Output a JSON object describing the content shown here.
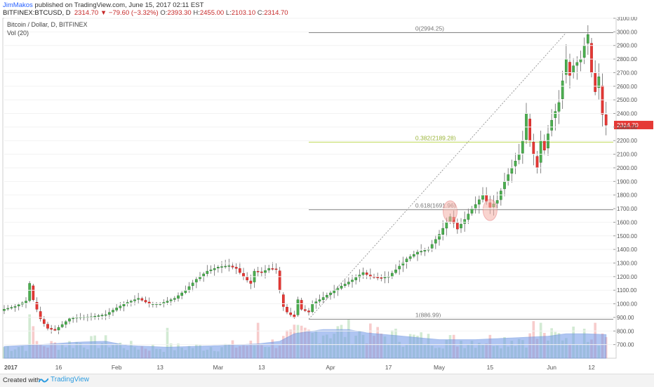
{
  "header": {
    "user": "JimMakos",
    "published_text": "published on TradingView.com, June 15, 2017 02:11 EST",
    "symbol": "BITFINEX:BTCUSD, D",
    "last": "2314.70",
    "change": "▼ −79.60 (−3.32%)",
    "o_label": "O:",
    "o_value": "2393.30",
    "h_label": "H:",
    "h_value": "2455.00",
    "l_label": "L:",
    "l_value": "2103.10",
    "c_label": "C:",
    "c_value": "2314.70"
  },
  "legend": {
    "line1": "Bitcoin / Dollar, D, BITFINEX",
    "line2": "Vol (20)"
  },
  "footer": {
    "created_with": "Created with",
    "brand": "TradingView"
  },
  "colors": {
    "up": "#4caf50",
    "down": "#e53935",
    "volume_ma": "#6f97e8",
    "fib_0618": "#888888",
    "fib_0382": "#c0d958",
    "last_price_tag": "#e53935"
  },
  "chart_data": {
    "type": "candlestick",
    "title": "Bitcoin / Dollar, D, BITFINEX",
    "y_axis": {
      "min": 600,
      "max": 3100,
      "step": 100,
      "ticks": [
        "700.00",
        "800.00",
        "900.00",
        "1000.00",
        "1100.00",
        "1200.00",
        "1300.00",
        "1400.00",
        "1500.00",
        "1600.00",
        "1700.00",
        "1800.00",
        "1900.00",
        "2000.00",
        "2100.00",
        "2200.00",
        "2300.00",
        "2400.00",
        "2500.00",
        "2600.00",
        "2700.00",
        "2800.00",
        "2900.00",
        "3000.00",
        "3100.00"
      ]
    },
    "x_axis": {
      "start_day": 0,
      "end_day": 168,
      "labels": [
        {
          "text": "2017",
          "day": 0,
          "bold": true
        },
        {
          "text": "16",
          "day": 15
        },
        {
          "text": "Feb",
          "day": 31
        },
        {
          "text": "13",
          "day": 43
        },
        {
          "text": "Mar",
          "day": 59
        },
        {
          "text": "13",
          "day": 71
        },
        {
          "text": "Apr",
          "day": 90
        },
        {
          "text": "17",
          "day": 106
        },
        {
          "text": "May",
          "day": 120
        },
        {
          "text": "15",
          "day": 134
        },
        {
          "text": "Jun",
          "day": 151
        },
        {
          "text": "12",
          "day": 162
        }
      ]
    },
    "anchors": [
      [
        0,
        960
      ],
      [
        3,
        980
      ],
      [
        6,
        1020
      ],
      [
        7,
        1150
      ],
      [
        8,
        1030
      ],
      [
        10,
        890
      ],
      [
        12,
        820
      ],
      [
        14,
        805
      ],
      [
        18,
        890
      ],
      [
        20,
        900
      ],
      [
        24,
        905
      ],
      [
        28,
        920
      ],
      [
        31,
        970
      ],
      [
        34,
        1010
      ],
      [
        37,
        1040
      ],
      [
        40,
        1000
      ],
      [
        43,
        1000
      ],
      [
        47,
        1040
      ],
      [
        50,
        1100
      ],
      [
        53,
        1180
      ],
      [
        56,
        1240
      ],
      [
        59,
        1270
      ],
      [
        62,
        1280
      ],
      [
        64,
        1260
      ],
      [
        66,
        1200
      ],
      [
        68,
        1150
      ],
      [
        69,
        1240
      ],
      [
        71,
        1230
      ],
      [
        73,
        1260
      ],
      [
        75,
        1255
      ],
      [
        76,
        1100
      ],
      [
        77,
        980
      ],
      [
        78,
        940
      ],
      [
        80,
        900
      ],
      [
        81,
        1030
      ],
      [
        82,
        960
      ],
      [
        84,
        940
      ],
      [
        85,
        1000
      ],
      [
        87,
        1030
      ],
      [
        90,
        1080
      ],
      [
        93,
        1130
      ],
      [
        96,
        1175
      ],
      [
        99,
        1230
      ],
      [
        101,
        1200
      ],
      [
        104,
        1190
      ],
      [
        106,
        1200
      ],
      [
        108,
        1250
      ],
      [
        111,
        1330
      ],
      [
        114,
        1380
      ],
      [
        117,
        1400
      ],
      [
        120,
        1510
      ],
      [
        122,
        1600
      ],
      [
        123,
        1640
      ],
      [
        125,
        1550
      ],
      [
        127,
        1620
      ],
      [
        129,
        1700
      ],
      [
        130,
        1730
      ],
      [
        132,
        1800
      ],
      [
        134,
        1710
      ],
      [
        136,
        1760
      ],
      [
        138,
        1900
      ],
      [
        140,
        2000
      ],
      [
        142,
        2100
      ],
      [
        143,
        2200
      ],
      [
        144,
        2400
      ],
      [
        145,
        2200
      ],
      [
        146,
        2100
      ],
      [
        147,
        2000
      ],
      [
        148,
        2200
      ],
      [
        149,
        2130
      ],
      [
        150,
        2250
      ],
      [
        151,
        2350
      ],
      [
        153,
        2480
      ],
      [
        155,
        2800
      ],
      [
        156,
        2680
      ],
      [
        157,
        2750
      ],
      [
        159,
        2800
      ],
      [
        160,
        2900
      ],
      [
        161,
        2980
      ],
      [
        162,
        2700
      ],
      [
        163,
        2560
      ],
      [
        164,
        2670
      ],
      [
        165,
        2394
      ],
      [
        166,
        2314.7
      ]
    ],
    "volume": {
      "max_displayed": 1000,
      "spikes": [
        [
          7,
          520
        ],
        [
          8,
          380
        ],
        [
          45,
          360
        ],
        [
          70,
          420
        ],
        [
          78,
          330
        ],
        [
          85,
          300
        ],
        [
          146,
          440
        ],
        [
          148,
          420
        ],
        [
          160,
          350
        ],
        [
          163,
          420
        ]
      ],
      "ma_anchors": [
        [
          0,
          140
        ],
        [
          10,
          160
        ],
        [
          20,
          190
        ],
        [
          28,
          200
        ],
        [
          34,
          150
        ],
        [
          45,
          130
        ],
        [
          60,
          150
        ],
        [
          70,
          170
        ],
        [
          76,
          200
        ],
        [
          80,
          290
        ],
        [
          88,
          340
        ],
        [
          95,
          340
        ],
        [
          100,
          300
        ],
        [
          110,
          260
        ],
        [
          120,
          220
        ],
        [
          130,
          220
        ],
        [
          140,
          240
        ],
        [
          150,
          260
        ],
        [
          155,
          290
        ],
        [
          160,
          290
        ],
        [
          166,
          280
        ]
      ]
    },
    "fibonacci": [
      {
        "label": "0(2994.25)",
        "price": 2994.25,
        "ratio": 0
      },
      {
        "label": "0.382(2189.28)",
        "price": 2189.28,
        "ratio": 0.382
      },
      {
        "label": "0.618(1691.96)",
        "price": 1691.96,
        "ratio": 0.618
      },
      {
        "label": "1(886.99)",
        "price": 886.99,
        "ratio": 1
      }
    ],
    "fib_start_day": 84,
    "trendline": {
      "from": [
        84,
        886.99
      ],
      "to": [
        155,
        2994.25
      ]
    },
    "highlights": [
      [
        123,
        1680
      ],
      [
        134,
        1690
      ]
    ],
    "last_price": {
      "value": 2314.7,
      "label": "2314.70"
    }
  }
}
